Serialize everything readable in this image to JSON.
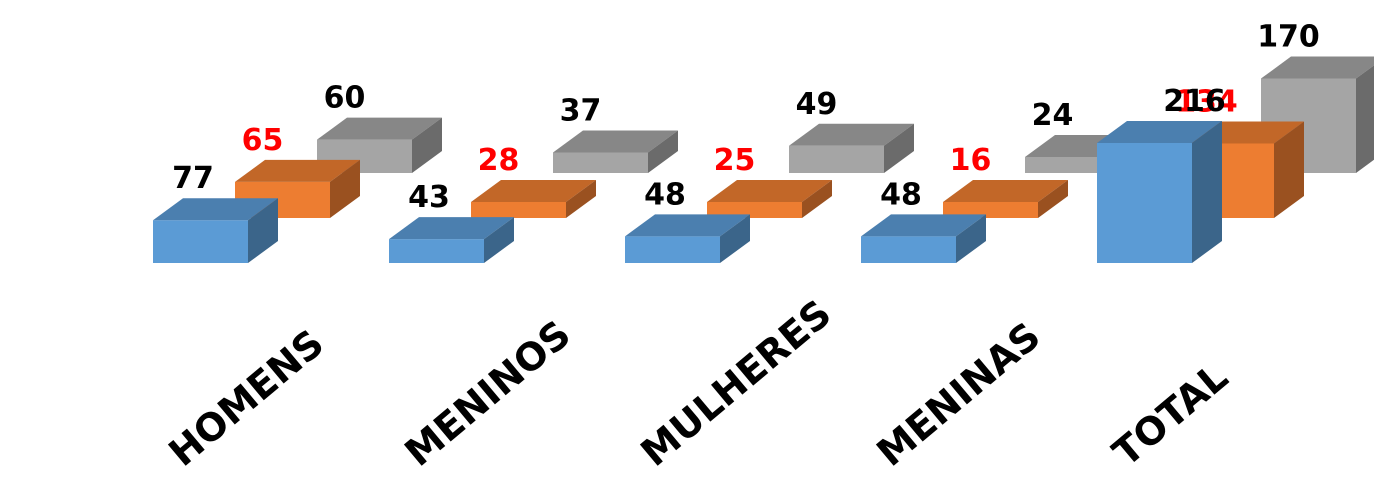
{
  "chart_data": {
    "type": "bar",
    "categories": [
      "HOMENS",
      "MENINOS",
      "MULHERES",
      "MENINAS",
      "TOTAL"
    ],
    "series": [
      {
        "values": [
          77,
          43,
          48,
          48,
          216
        ],
        "color": "#5B9BD5",
        "label_color": "#000000"
      },
      {
        "values": [
          65,
          28,
          25,
          16,
          134
        ],
        "color": "#ED7D31",
        "label_color": "#FF0000"
      },
      {
        "values": [
          60,
          37,
          49,
          24,
          170
        ],
        "color": "#A5A5A5",
        "label_color": "#000000"
      }
    ],
    "ylim": [
      0,
      216
    ],
    "grid": false,
    "legend": "none"
  }
}
